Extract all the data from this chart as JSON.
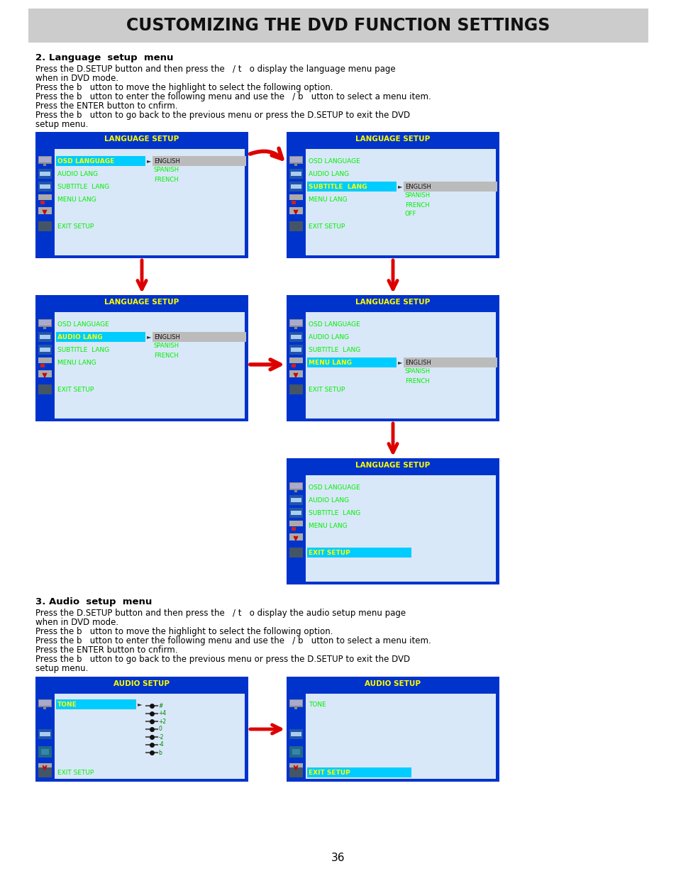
{
  "title": "CUSTOMIZING THE DVD FUNCTION SETTINGS",
  "page_bg": "#ffffff",
  "blue_dark": "#0033cc",
  "blue_med": "#1144dd",
  "panel_inner": "#d8e0f0",
  "yellow": "#ffff00",
  "green": "#00ee00",
  "cyan": "#00ccff",
  "red": "#dd0000",
  "white": "#ffffff",
  "black": "#000000",
  "gray_title": "#cccccc",
  "section2_title": "2. Language  setup  menu",
  "section2_lines": [
    "Press the D.SETUP button and then press the   / t   o display the language menu page",
    "when in DVD mode.",
    "Press the b   utton to move the highlight to select the following option.",
    "Press the b   utton to enter the following menu and use the   / b   utton to select a menu item.",
    "Press the ENTER button to cnfirm.",
    "Press the b   utton to go back to the previous menu or press the D.SETUP to exit the DVD",
    "setup menu."
  ],
  "section3_title": "3. Audio  setup  menu",
  "section3_lines": [
    "Press the D.SETUP button and then press the   / t   o display the audio setup menu page",
    "when in DVD mode.",
    "Press the b   utton to move the highlight to select the following option.",
    "Press the b   utton to enter the following menu and use the   / b   utton to select a menu item.",
    "Press the ENTER button to cnfirm.",
    "Press the b   utton to go back to the previous menu or press the D.SETUP to exit the DVD",
    "setup menu."
  ],
  "page_num": "36"
}
